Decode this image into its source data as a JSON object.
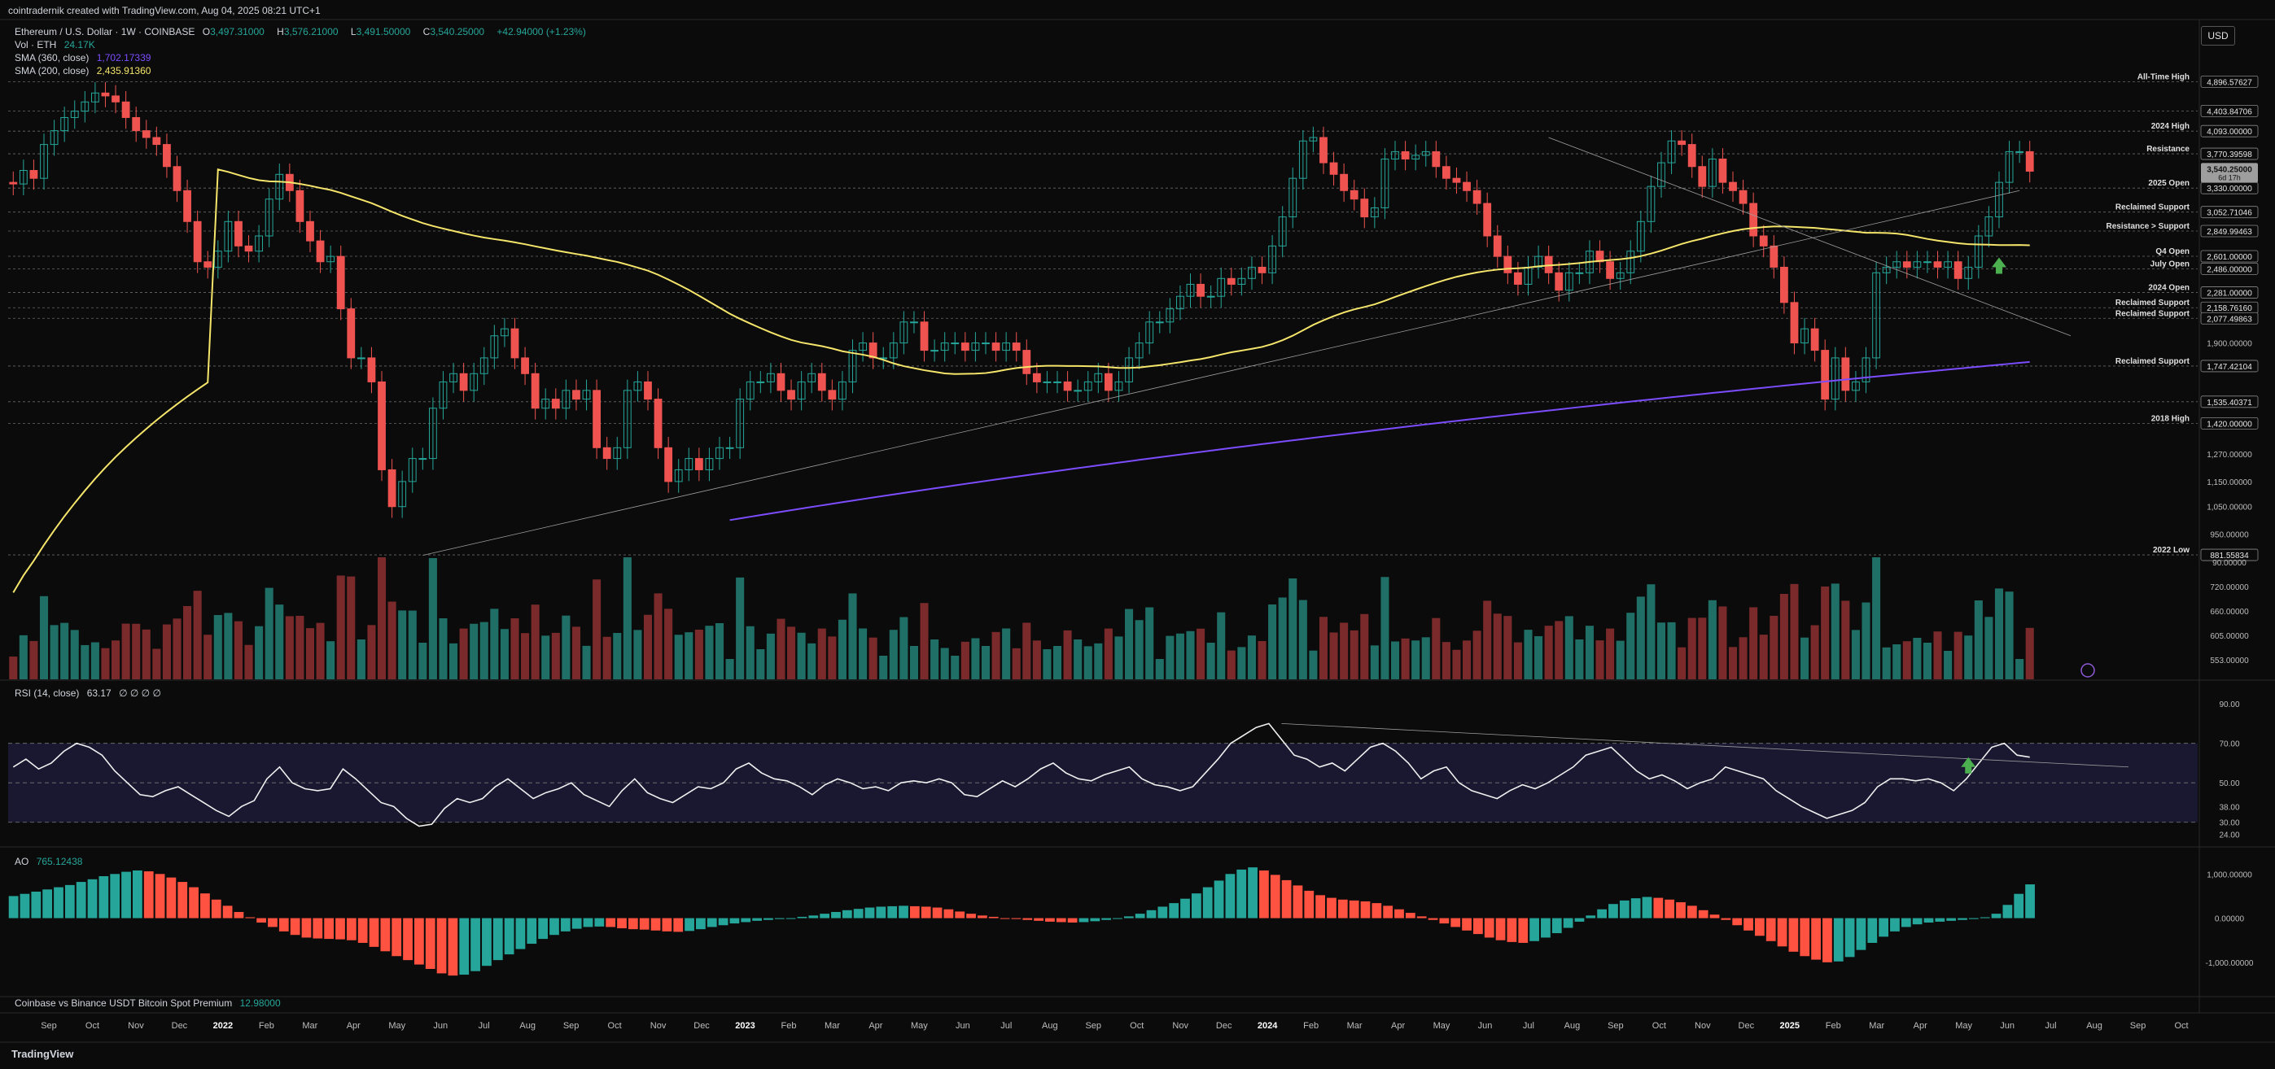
{
  "header": {
    "created_by": "cointradernik created with TradingView.com, Aug 04, 2025 08:21 UTC+1",
    "currency_button": "USD",
    "brand": "TradingView"
  },
  "legend": {
    "symbol": "Ethereum / U.S. Dollar · 1W · COINBASE",
    "ohlc": {
      "O": "3,497.31000",
      "H": "3,576.21000",
      "L": "3,491.50000",
      "C": "3,540.25000",
      "change": "+42.94000 (+1.23%)"
    },
    "volume_label": "Vol · ETH",
    "volume_value": "24.17K",
    "sma360_label": "SMA (360, close)",
    "sma360_value": "1,702.17339",
    "sma200_label": "SMA (200, close)",
    "sma200_value": "2,435.91360",
    "rsi_label": "RSI (14, close)",
    "rsi_value": "63.17",
    "rsi_extra": "∅ ∅ ∅ ∅",
    "ao_label": "AO",
    "ao_value": "765.12438",
    "premium_label": "Coinbase vs Binance USDT Bitcoin Spot Premium",
    "premium_value": "12.98000"
  },
  "colors": {
    "bg": "#0b0b0b",
    "up": "#26a69a",
    "down": "#ef5350",
    "text": "#d1d4dc",
    "sma200": "#f5e56b",
    "sma360": "#7c4dff",
    "rsi_band": "#1a1830",
    "ao_up": "#26a69a",
    "ao_down": "#ff5240",
    "price_tag": "#e8e8e8"
  },
  "chart_data": [
    {
      "type": "candlestick",
      "title": "Ethereum / U.S. Dollar · 1W · COINBASE",
      "x_ticks": [
        "Sep",
        "Oct",
        "Nov",
        "Dec",
        "2022",
        "Feb",
        "Mar",
        "Apr",
        "May",
        "Jun",
        "Jul",
        "Aug",
        "Sep",
        "Oct",
        "Nov",
        "Dec",
        "2023",
        "Feb",
        "Mar",
        "Apr",
        "May",
        "Jun",
        "Jul",
        "Aug",
        "Sep",
        "Oct",
        "Nov",
        "Dec",
        "2024",
        "Feb",
        "Mar",
        "Apr",
        "May",
        "Jun",
        "Jul",
        "Aug",
        "Sep",
        "Oct",
        "Nov",
        "Dec",
        "2025",
        "Feb",
        "Mar",
        "Apr",
        "May",
        "Jun",
        "Jul",
        "Aug",
        "Sep",
        "Oct"
      ],
      "y_ticks": [
        "4,093.00000",
        "3,330.00000",
        "2,281.00000",
        "1,900.00000",
        "1,270.00000",
        "1,150.00000",
        "1,050.00000",
        "950.00000"
      ],
      "price_levels": [
        {
          "name": "All-Time High",
          "value": "4,896.57627",
          "y": 4896.58
        },
        {
          "name": "",
          "value": "4,403.84706",
          "y": 4403.85
        },
        {
          "name": "2024 High",
          "value": "4,093.00000",
          "y": 4093.0
        },
        {
          "name": "Resistance",
          "value": "3,770.39598",
          "y": 3770.4
        },
        {
          "name": "2025 Open",
          "value": "3,330.00000",
          "y": 3330.0
        },
        {
          "name": "Reclaimed Support",
          "value": "3,052.71046",
          "y": 3052.71
        },
        {
          "name": "Resistance > Support",
          "value": "2,849.99463",
          "y": 2849.99
        },
        {
          "name": "Q4 Open",
          "value": "2,601.00000",
          "y": 2601.0
        },
        {
          "name": "July Open",
          "value": "2,486.00000",
          "y": 2486.0
        },
        {
          "name": "2024 Open",
          "value": "2,281.00000",
          "y": 2281.0
        },
        {
          "name": "Reclaimed Support",
          "value": "2,158.76160",
          "y": 2158.76
        },
        {
          "name": "Reclaimed Support",
          "value": "2,077.49863",
          "y": 2077.5
        },
        {
          "name": "Reclaimed Support",
          "value": "1,747.42104",
          "y": 1747.42
        },
        {
          "name": "",
          "value": "1,535.40371",
          "y": 1535.4
        },
        {
          "name": "2018 High",
          "value": "1,420.00000",
          "y": 1420.0
        },
        {
          "name": "2022 Low",
          "value": "881.55834",
          "y": 881.56
        }
      ],
      "last_price": {
        "value": "3,540.25000",
        "countdown": "6d 17h",
        "y": 3540.25
      },
      "closes_start": 3400,
      "closes": [
        3380,
        3550,
        3450,
        3900,
        4100,
        4300,
        4400,
        4550,
        4700,
        4650,
        4550,
        4300,
        4100,
        4000,
        3900,
        3600,
        3300,
        2950,
        2550,
        2500,
        2650,
        2950,
        2700,
        2650,
        2800,
        3200,
        3500,
        3300,
        2950,
        2750,
        2550,
        2600,
        2150,
        1800,
        1800,
        1650,
        1200,
        1050,
        1150,
        1250,
        1250,
        1500,
        1650,
        1700,
        1600,
        1700,
        1800,
        1950,
        2000,
        1800,
        1700,
        1500,
        1550,
        1500,
        1600,
        1550,
        1600,
        1300,
        1250,
        1300,
        1600,
        1650,
        1550,
        1300,
        1150,
        1200,
        1250,
        1200,
        1250,
        1300,
        1300,
        1550,
        1650,
        1650,
        1700,
        1600,
        1550,
        1650,
        1700,
        1600,
        1550,
        1650,
        1850,
        1900,
        1800,
        1800,
        1900,
        2050,
        2050,
        1850,
        1850,
        1900,
        1900,
        1850,
        1900,
        1900,
        1850,
        1900,
        1850,
        1700,
        1650,
        1650,
        1650,
        1600,
        1600,
        1650,
        1700,
        1600,
        1650,
        1800,
        1900,
        2050,
        2050,
        2150,
        2250,
        2350,
        2250,
        2250,
        2400,
        2350,
        2400,
        2500,
        2450,
        2700,
        3000,
        3450,
        3950,
        4000,
        3650,
        3500,
        3300,
        3200,
        3000,
        3100,
        3700,
        3800,
        3700,
        3750,
        3800,
        3600,
        3450,
        3400,
        3300,
        3150,
        2800,
        2600,
        2450,
        2350,
        2500,
        2600,
        2450,
        2300,
        2450,
        2450,
        2650,
        2550,
        2400,
        2450,
        2650,
        2950,
        3350,
        3650,
        3950,
        3900,
        3600,
        3350,
        3700,
        3400,
        3300,
        3150,
        2800,
        2700,
        2500,
        2200,
        1900,
        2000,
        1850,
        1550,
        1800,
        1600,
        1650,
        1800,
        2450,
        2500,
        2550,
        2500,
        2550,
        2550,
        2500,
        2550,
        2400,
        2500,
        2800,
        3000,
        3400,
        3800,
        3800,
        3540
      ]
    },
    {
      "type": "bar",
      "title": "Vol · ETH",
      "y_ticks": [
        "90.00000",
        "720.00000",
        "660.00000",
        "605.00000",
        "553.00000"
      ]
    },
    {
      "type": "line",
      "title": "RSI (14, close)",
      "y_ticks": [
        "90.00",
        "70.00",
        "50.00",
        "38.00",
        "30.00",
        "24.00"
      ],
      "values_start": 55,
      "values": [
        58,
        62,
        57,
        60,
        66,
        70,
        68,
        64,
        56,
        50,
        44,
        43,
        46,
        48,
        44,
        40,
        36,
        33,
        38,
        41,
        52,
        58,
        50,
        47,
        46,
        47,
        57,
        52,
        46,
        40,
        38,
        32,
        28,
        29,
        37,
        42,
        40,
        42,
        48,
        52,
        47,
        42,
        45,
        47,
        50,
        44,
        41,
        38,
        46,
        52,
        45,
        42,
        40,
        44,
        48,
        47,
        50,
        57,
        60,
        55,
        52,
        51,
        48,
        44,
        49,
        52,
        50,
        47,
        48,
        46,
        50,
        51,
        50,
        52,
        50,
        44,
        43,
        47,
        51,
        48,
        52,
        57,
        60,
        55,
        52,
        51,
        54,
        56,
        58,
        52,
        49,
        48,
        46,
        48,
        55,
        62,
        70,
        74,
        78,
        80,
        72,
        64,
        62,
        58,
        60,
        56,
        62,
        68,
        70,
        66,
        60,
        52,
        56,
        58,
        50,
        46,
        44,
        42,
        46,
        49,
        47,
        50,
        54,
        58,
        64,
        66,
        68,
        62,
        56,
        52,
        54,
        51,
        47,
        50,
        52,
        58,
        56,
        54,
        52,
        46,
        42,
        38,
        35,
        32,
        34,
        36,
        40,
        48,
        52,
        52,
        51,
        52,
        50,
        46,
        52,
        60,
        68,
        70,
        64,
        63
      ]
    },
    {
      "type": "bar",
      "title": "AO",
      "y_ticks": [
        "1,000.00000",
        "0.00000",
        "-1,000.00000"
      ],
      "values_start": 400,
      "values": [
        500,
        550,
        600,
        650,
        700,
        750,
        820,
        880,
        950,
        1000,
        1050,
        1080,
        1060,
        1000,
        920,
        820,
        700,
        560,
        420,
        280,
        140,
        20,
        -100,
        -200,
        -300,
        -380,
        -440,
        -460,
        -470,
        -480,
        -500,
        -560,
        -650,
        -750,
        -860,
        -950,
        -1050,
        -1150,
        -1250,
        -1300,
        -1280,
        -1200,
        -1080,
        -950,
        -820,
        -700,
        -580,
        -470,
        -380,
        -300,
        -240,
        -200,
        -190,
        -200,
        -230,
        -250,
        -260,
        -280,
        -300,
        -310,
        -290,
        -250,
        -200,
        -160,
        -120,
        -90,
        -60,
        -40,
        -20,
        0,
        30,
        60,
        100,
        140,
        180,
        210,
        240,
        260,
        270,
        280,
        270,
        260,
        240,
        200,
        150,
        100,
        60,
        30,
        0,
        -20,
        -40,
        -60,
        -80,
        -90,
        -100,
        -90,
        -70,
        -40,
        0,
        40,
        100,
        180,
        260,
        340,
        440,
        560,
        700,
        850,
        1000,
        1100,
        1150,
        1080,
        980,
        860,
        740,
        620,
        520,
        460,
        420,
        400,
        380,
        340,
        280,
        200,
        120,
        40,
        -40,
        -120,
        -200,
        -280,
        -360,
        -440,
        -500,
        -540,
        -560,
        -520,
        -440,
        -340,
        -220,
        -80,
        60,
        200,
        320,
        400,
        450,
        480,
        460,
        420,
        360,
        280,
        180,
        80,
        -40,
        -160,
        -280,
        -400,
        -520,
        -640,
        -760,
        -860,
        -940,
        -1000,
        -980,
        -880,
        -720,
        -560,
        -420,
        -300,
        -200,
        -140,
        -100,
        -80,
        -60,
        -40,
        -20,
        20,
        100,
        300,
        550,
        765
      ]
    },
    {
      "type": "line",
      "title": "Coinbase vs Binance USDT Bitcoin Spot Premium",
      "values": [
        12.98
      ]
    }
  ],
  "tooltip_rows_count": 0
}
